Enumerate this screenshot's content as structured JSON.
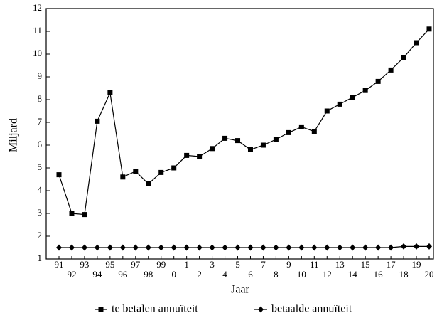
{
  "chart_data": {
    "type": "line",
    "y_label": "Miljard",
    "x_label": "Jaar",
    "categories": [
      "91",
      "92",
      "93",
      "94",
      "95",
      "96",
      "97",
      "98",
      "99",
      "0",
      "1",
      "2",
      "3",
      "4",
      "5",
      "6",
      "7",
      "8",
      "9",
      "10",
      "11",
      "12",
      "13",
      "14",
      "15",
      "16",
      "17",
      "18",
      "19",
      "20"
    ],
    "series": [
      {
        "name": "te betalen annuïteit",
        "color": "#000000",
        "marker": "square",
        "values": [
          4.7,
          3.0,
          2.95,
          7.05,
          8.3,
          4.6,
          4.85,
          4.3,
          4.8,
          5.0,
          5.55,
          5.5,
          5.85,
          6.3,
          6.2,
          5.8,
          6.0,
          6.25,
          6.55,
          6.8,
          6.6,
          7.5,
          7.8,
          8.1,
          8.4,
          8.8,
          9.3,
          9.85,
          10.5,
          11.1
        ]
      },
      {
        "name": "betaalde annuïteit",
        "color": "#000000",
        "marker": "diamond",
        "values": [
          1.5,
          1.5,
          1.5,
          1.5,
          1.5,
          1.5,
          1.5,
          1.5,
          1.5,
          1.5,
          1.5,
          1.5,
          1.5,
          1.5,
          1.5,
          1.5,
          1.5,
          1.5,
          1.5,
          1.5,
          1.5,
          1.5,
          1.5,
          1.5,
          1.5,
          1.5,
          1.5,
          1.55,
          1.55,
          1.55
        ]
      }
    ],
    "ylim": [
      1,
      12
    ],
    "yticks": [
      1,
      2,
      3,
      4,
      5,
      6,
      7,
      8,
      9,
      10,
      11,
      12
    ],
    "grid": false,
    "legend": "bottom"
  }
}
